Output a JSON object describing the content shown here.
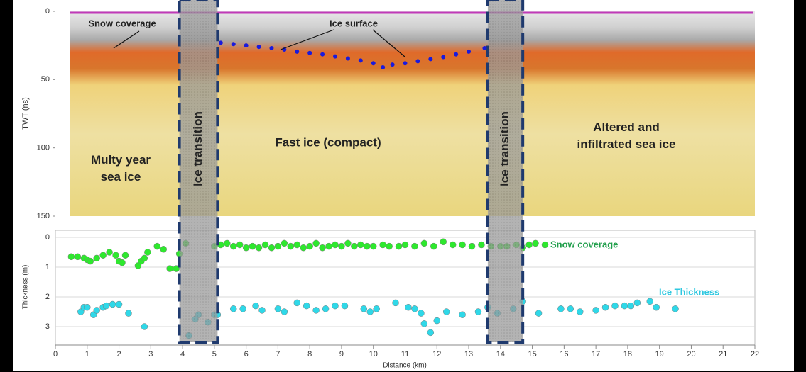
{
  "chart_data": [
    {
      "type": "radargram",
      "ylabel": "TWT (ns)",
      "ylim": [
        0,
        150
      ],
      "yticks": [
        0,
        50,
        100,
        150
      ],
      "xlim": [
        0,
        22
      ],
      "series": [
        {
          "name": "Ice surface",
          "color": "#1a1adc",
          "x": [
            5.2,
            5.6,
            6.0,
            6.4,
            6.8,
            7.2,
            7.6,
            8.0,
            8.4,
            8.8,
            9.2,
            9.6,
            10.0,
            10.3,
            10.6,
            11.0,
            11.4,
            11.8,
            12.2,
            12.6,
            13.0,
            13.5
          ],
          "values": [
            23,
            24,
            25,
            26,
            27,
            28,
            29.5,
            30.5,
            31.5,
            33,
            34.5,
            36,
            38,
            41,
            39,
            38,
            36.5,
            35,
            33.5,
            31.5,
            29.5,
            27
          ]
        }
      ],
      "annotations": [
        "Snow coverage",
        "Multy year sea ice",
        "Fast ice (compact)",
        "Altered and infiltrated sea ice"
      ],
      "transition_label": "Ice transition",
      "transition_zones": [
        [
          3.9,
          5.1
        ],
        [
          13.6,
          14.7
        ]
      ]
    },
    {
      "type": "scatter",
      "xlabel": "Distance (km)",
      "ylabel": "Thickness (m)",
      "xlim": [
        0,
        22
      ],
      "xticks": [
        0,
        1,
        2,
        3,
        4,
        5,
        6,
        7,
        8,
        9,
        10,
        11,
        12,
        13,
        14,
        15,
        16,
        17,
        18,
        19,
        20,
        21,
        22
      ],
      "ylim": [
        0,
        3.5
      ],
      "yticks": [
        0,
        1,
        2,
        3
      ],
      "y_inverted": true,
      "grid": true,
      "series": [
        {
          "name": "Snow coverage",
          "color": "#2ee82e",
          "x": [
            0.5,
            0.7,
            0.9,
            1.0,
            1.1,
            1.3,
            1.5,
            1.7,
            1.9,
            2.0,
            2.1,
            2.2,
            2.6,
            2.7,
            2.8,
            2.9,
            3.2,
            3.4,
            3.6,
            3.8,
            3.9,
            4.1,
            5.0,
            5.2,
            5.4,
            5.6,
            5.8,
            6.0,
            6.2,
            6.4,
            6.6,
            6.8,
            7.0,
            7.2,
            7.4,
            7.6,
            7.8,
            8.0,
            8.2,
            8.4,
            8.6,
            8.8,
            9.0,
            9.2,
            9.4,
            9.6,
            9.8,
            10.0,
            10.3,
            10.5,
            10.8,
            11.0,
            11.3,
            11.6,
            11.9,
            12.2,
            12.5,
            12.8,
            13.1,
            13.4,
            13.7,
            14.0,
            14.2,
            14.5,
            14.7,
            14.9,
            15.1,
            15.4
          ],
          "values": [
            0.65,
            0.65,
            0.7,
            0.75,
            0.8,
            0.7,
            0.6,
            0.5,
            0.6,
            0.8,
            0.85,
            0.6,
            0.95,
            0.8,
            0.7,
            0.5,
            0.3,
            0.4,
            1.05,
            1.05,
            0.55,
            0.2,
            0.3,
            0.25,
            0.2,
            0.3,
            0.25,
            0.35,
            0.3,
            0.35,
            0.25,
            0.35,
            0.3,
            0.2,
            0.3,
            0.25,
            0.35,
            0.3,
            0.2,
            0.35,
            0.3,
            0.25,
            0.3,
            0.2,
            0.3,
            0.25,
            0.3,
            0.3,
            0.25,
            0.3,
            0.3,
            0.25,
            0.3,
            0.2,
            0.3,
            0.15,
            0.25,
            0.25,
            0.3,
            0.25,
            0.3,
            0.3,
            0.3,
            0.25,
            0.35,
            0.25,
            0.2,
            0.25
          ]
        },
        {
          "name": "Ice Thickness",
          "color": "#2fd8e8",
          "x": [
            0.8,
            0.9,
            1.0,
            1.2,
            1.3,
            1.5,
            1.6,
            1.8,
            2.0,
            2.3,
            2.8,
            4.2,
            4.4,
            4.5,
            4.8,
            5.0,
            5.1,
            5.6,
            5.9,
            6.3,
            6.5,
            7.0,
            7.2,
            7.6,
            7.9,
            8.2,
            8.5,
            8.8,
            9.1,
            9.7,
            9.9,
            10.1,
            10.7,
            11.1,
            11.3,
            11.5,
            11.6,
            11.8,
            12.0,
            12.3,
            12.8,
            13.3,
            13.6,
            13.9,
            14.4,
            14.7,
            15.2,
            15.9,
            16.2,
            16.5,
            17.0,
            17.3,
            17.6,
            17.9,
            18.1,
            18.3,
            18.7,
            18.9,
            19.5
          ],
          "values": [
            2.5,
            2.35,
            2.35,
            2.6,
            2.45,
            2.35,
            2.3,
            2.25,
            2.25,
            2.55,
            3.0,
            3.3,
            2.75,
            2.6,
            2.85,
            2.6,
            2.6,
            2.4,
            2.4,
            2.3,
            2.45,
            2.4,
            2.5,
            2.2,
            2.3,
            2.45,
            2.4,
            2.3,
            2.3,
            2.4,
            2.5,
            2.4,
            2.2,
            2.35,
            2.4,
            2.55,
            2.9,
            3.2,
            2.8,
            2.5,
            2.6,
            2.5,
            2.35,
            2.55,
            2.4,
            2.15,
            2.55,
            2.4,
            2.4,
            2.5,
            2.45,
            2.35,
            2.3,
            2.3,
            2.3,
            2.2,
            2.15,
            2.35,
            2.4
          ]
        }
      ]
    }
  ]
}
